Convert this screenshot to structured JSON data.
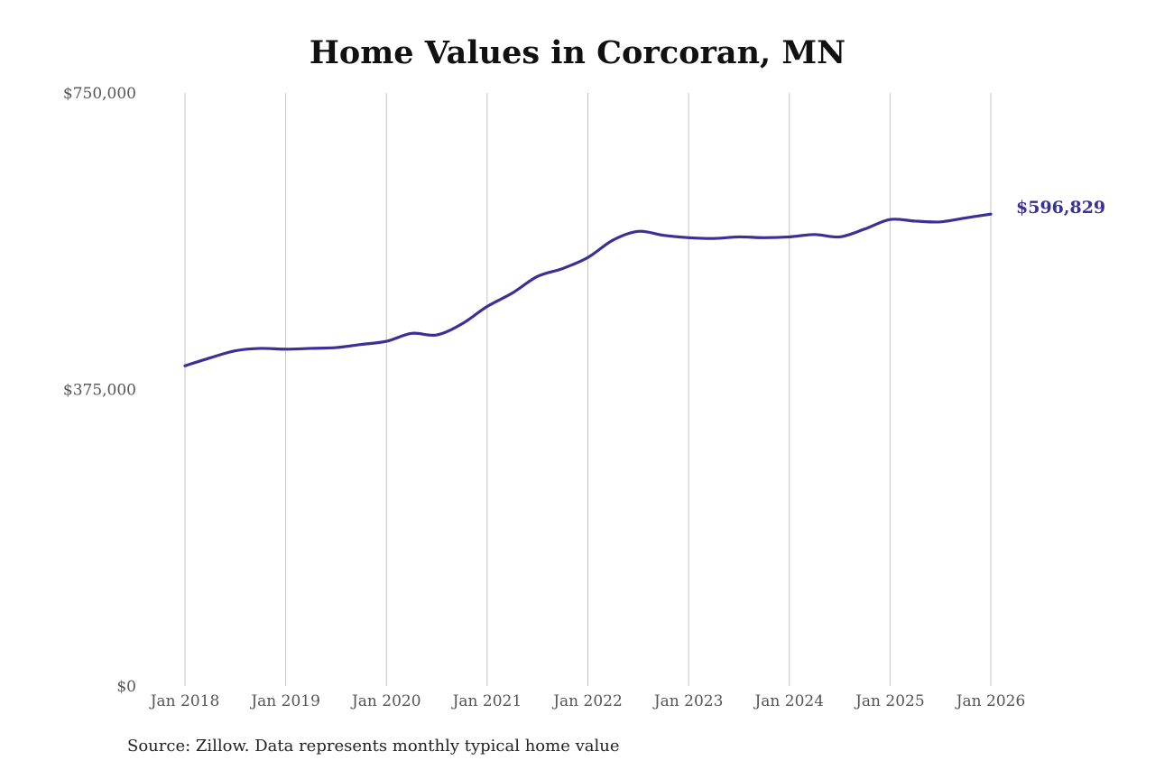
{
  "chart_data": {
    "type": "line",
    "title": "Home Values in Corcoran, MN",
    "source": "Source: Zillow. Data represents monthly typical home value",
    "xlabel": "",
    "ylabel": "",
    "ylim": [
      0,
      750000
    ],
    "yticks": [
      0,
      375000,
      750000
    ],
    "ytick_labels": [
      "$0",
      "$375,000",
      "$750,000"
    ],
    "xticks": [
      "2018-01",
      "2019-01",
      "2020-01",
      "2021-01",
      "2022-01",
      "2023-01",
      "2024-01",
      "2025-01",
      "2026-01"
    ],
    "xtick_labels": [
      "Jan 2018",
      "Jan 2019",
      "Jan 2020",
      "Jan 2021",
      "Jan 2022",
      "Jan 2023",
      "Jan 2024",
      "Jan 2025",
      "Jan 2026"
    ],
    "grid": "vertical",
    "color": "#3a3196",
    "end_label": "$596,829",
    "series": [
      {
        "x": [
          "2018-01",
          "2018-04",
          "2018-07",
          "2018-10",
          "2019-01",
          "2019-04",
          "2019-07",
          "2019-10",
          "2020-01",
          "2020-04",
          "2020-07",
          "2020-10",
          "2021-01",
          "2021-04",
          "2021-07",
          "2021-10",
          "2022-01",
          "2022-04",
          "2022-07",
          "2022-10",
          "2023-01",
          "2023-04",
          "2023-07",
          "2023-10",
          "2024-01",
          "2024-04",
          "2024-07",
          "2024-10",
          "2025-01",
          "2025-04",
          "2025-07",
          "2025-10",
          "2026-01"
        ],
        "y": [
          405000,
          415000,
          424000,
          427000,
          426000,
          427000,
          428000,
          432000,
          436000,
          446000,
          444000,
          458000,
          480000,
          497000,
          518000,
          528000,
          542000,
          564000,
          575000,
          570000,
          567000,
          566000,
          568000,
          567000,
          568000,
          571000,
          568000,
          578000,
          590000,
          588000,
          587000,
          592000,
          596829
        ]
      }
    ]
  }
}
